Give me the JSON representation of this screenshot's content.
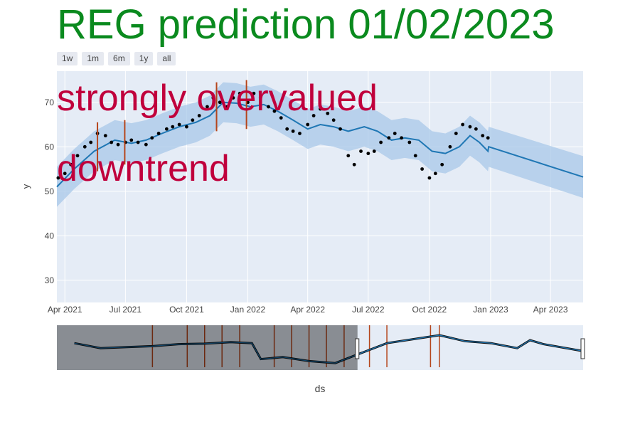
{
  "title": "REG prediction 01/02/2023",
  "range_buttons": [
    "1w",
    "1m",
    "6m",
    "1y",
    "all"
  ],
  "annotations": [
    "strongly overvalued",
    "downtrend"
  ],
  "colors": {
    "title": "#0a8a1e",
    "annotation": "#c0003c",
    "forecast_line": "#1f77b4",
    "band": "#a8c8e8",
    "points": "#000000",
    "changepoints": "#b5451b",
    "plot_bg": "#e5ecf6"
  },
  "chart_data": {
    "type": "line",
    "xlabel": "ds",
    "ylabel": "y",
    "ylim": [
      25,
      77
    ],
    "yticks": [
      30,
      40,
      50,
      60,
      70
    ],
    "xticks": [
      "Apr 2021",
      "Jul 2021",
      "Oct 2021",
      "Jan 2022",
      "Apr 2022",
      "Jul 2022",
      "Oct 2022",
      "Jan 2023",
      "Apr 2023"
    ],
    "xtick_dates": [
      "2021-04-01",
      "2021-07-01",
      "2021-10-01",
      "2022-01-01",
      "2022-04-01",
      "2022-07-01",
      "2022-10-01",
      "2023-01-01",
      "2023-04-01"
    ],
    "xrange": [
      "2021-03-20",
      "2023-05-20"
    ],
    "series": [
      {
        "name": "yhat",
        "x": [
          "2021-03-20",
          "2021-04-15",
          "2021-05-15",
          "2021-06-15",
          "2021-07-10",
          "2021-08-01",
          "2021-08-25",
          "2021-09-20",
          "2021-10-15",
          "2021-11-05",
          "2021-11-25",
          "2021-12-15",
          "2022-01-05",
          "2022-01-25",
          "2022-02-15",
          "2022-03-10",
          "2022-04-01",
          "2022-04-20",
          "2022-05-10",
          "2022-06-01",
          "2022-06-25",
          "2022-07-15",
          "2022-08-05",
          "2022-08-25",
          "2022-09-15",
          "2022-10-05",
          "2022-10-25",
          "2022-11-15",
          "2022-12-01",
          "2022-12-15",
          "2022-12-28",
          "2022-12-29",
          "2023-05-20"
        ],
        "y": [
          51,
          55,
          59,
          61.5,
          60.8,
          61.5,
          63,
          64.5,
          65.5,
          67,
          70,
          69.8,
          69,
          69.5,
          68,
          66,
          64,
          65,
          64.5,
          63.5,
          64.5,
          63.5,
          61.5,
          62,
          61.5,
          59,
          58.5,
          60,
          62.5,
          61,
          59,
          60,
          53.2
        ]
      },
      {
        "name": "observed",
        "type": "scatter",
        "x": [
          "2021-03-22",
          "2021-04-01",
          "2021-04-10",
          "2021-04-20",
          "2021-05-01",
          "2021-05-10",
          "2021-05-20",
          "2021-06-01",
          "2021-06-10",
          "2021-06-20",
          "2021-07-01",
          "2021-07-10",
          "2021-07-20",
          "2021-08-01",
          "2021-08-10",
          "2021-08-20",
          "2021-09-01",
          "2021-09-10",
          "2021-09-20",
          "2021-10-01",
          "2021-10-10",
          "2021-10-20",
          "2021-11-01",
          "2021-11-10",
          "2021-11-20",
          "2021-12-01",
          "2021-12-10",
          "2021-12-20",
          "2022-01-01",
          "2022-01-10",
          "2022-01-20",
          "2022-02-01",
          "2022-02-10",
          "2022-02-20",
          "2022-03-01",
          "2022-03-10",
          "2022-03-20",
          "2022-04-01",
          "2022-04-10",
          "2022-04-20",
          "2022-05-01",
          "2022-05-10",
          "2022-05-20",
          "2022-06-01",
          "2022-06-10",
          "2022-06-20",
          "2022-07-01",
          "2022-07-10",
          "2022-07-20",
          "2022-08-01",
          "2022-08-10",
          "2022-08-20",
          "2022-09-01",
          "2022-09-10",
          "2022-09-20",
          "2022-10-01",
          "2022-10-10",
          "2022-10-20",
          "2022-11-01",
          "2022-11-10",
          "2022-11-20",
          "2022-12-01",
          "2022-12-10",
          "2022-12-20",
          "2022-12-28"
        ],
        "y": [
          53,
          54,
          56,
          58,
          60,
          61,
          63,
          62.5,
          61,
          60.5,
          61,
          61.5,
          61,
          60.5,
          62,
          63,
          64,
          64.5,
          65,
          64.5,
          66,
          67,
          69,
          71,
          70,
          69,
          71,
          72,
          70,
          72,
          71,
          69,
          68,
          66.5,
          64,
          63.5,
          63,
          65,
          67,
          68.5,
          67.5,
          66,
          64,
          58,
          56,
          59,
          58.5,
          59,
          61,
          62,
          63,
          62,
          61,
          58,
          55,
          53,
          54,
          56,
          60,
          63,
          65,
          64.5,
          64,
          62.5,
          62
        ]
      }
    ],
    "band": {
      "name": "uncertainty",
      "x": [
        "2021-03-20",
        "2021-04-15",
        "2021-05-15",
        "2021-06-15",
        "2021-07-10",
        "2021-08-01",
        "2021-08-25",
        "2021-09-20",
        "2021-10-15",
        "2021-11-05",
        "2021-11-25",
        "2021-12-15",
        "2022-01-05",
        "2022-01-25",
        "2022-02-15",
        "2022-03-10",
        "2022-04-01",
        "2022-04-20",
        "2022-05-10",
        "2022-06-01",
        "2022-06-25",
        "2022-07-15",
        "2022-08-05",
        "2022-08-25",
        "2022-09-15",
        "2022-10-05",
        "2022-10-25",
        "2022-11-15",
        "2022-12-01",
        "2022-12-15",
        "2022-12-28",
        "2022-12-29",
        "2023-05-20"
      ],
      "lower": [
        46.5,
        50.5,
        54.5,
        57,
        56.3,
        57,
        58.5,
        60,
        61,
        62.5,
        65.5,
        65.3,
        64.5,
        65,
        63.5,
        61.5,
        59.5,
        60.5,
        60,
        59,
        60,
        59,
        57,
        57.5,
        57,
        54.5,
        54,
        55.5,
        58,
        56.5,
        54.5,
        55.5,
        48.5
      ],
      "upper": [
        55.5,
        59.5,
        63.5,
        66,
        65.3,
        66,
        67.5,
        69,
        70,
        71.5,
        74.5,
        74.3,
        73.5,
        74,
        72.5,
        70.5,
        68.5,
        69.5,
        69,
        68,
        69,
        68,
        66,
        66.5,
        66,
        63.5,
        63,
        64.5,
        67,
        65.5,
        63.5,
        64.5,
        57.9
      ]
    },
    "changepoints": [
      {
        "x": "2021-05-20",
        "y0": 54.5,
        "y1": 65.5
      },
      {
        "x": "2021-06-30",
        "y0": 56,
        "y1": 66
      },
      {
        "x": "2021-11-15",
        "y0": 63.5,
        "y1": 74.5
      },
      {
        "x": "2021-12-30",
        "y0": 64,
        "y1": 75
      }
    ],
    "navigator": {
      "changepoints": [
        "2019-04-01",
        "2019-08-01",
        "2019-10-01",
        "2019-12-01",
        "2020-02-01",
        "2020-06-01",
        "2020-08-01",
        "2020-10-01",
        "2020-12-01",
        "2021-02-01",
        "2021-05-01",
        "2021-07-01",
        "2021-12-01",
        "2022-01-01"
      ],
      "x": [
        "2018-07-01",
        "2018-10-01",
        "2019-01-01",
        "2019-04-01",
        "2019-07-01",
        "2019-10-01",
        "2020-01-01",
        "2020-03-15",
        "2020-04-15",
        "2020-07-01",
        "2020-10-01",
        "2021-01-01",
        "2021-04-01",
        "2021-07-01",
        "2021-10-01",
        "2022-01-01",
        "2022-04-01",
        "2022-07-01",
        "2022-10-01",
        "2022-11-15",
        "2023-01-01",
        "2023-05-20"
      ],
      "y": [
        62,
        57,
        58,
        59,
        61,
        61.5,
        63,
        62,
        46,
        48,
        44,
        42,
        52,
        62,
        66,
        70,
        64,
        62,
        57,
        65,
        61,
        54
      ],
      "xrange": [
        "2018-05-01",
        "2023-05-20"
      ],
      "window": [
        "2021-03-20",
        "2023-05-20"
      ]
    }
  }
}
